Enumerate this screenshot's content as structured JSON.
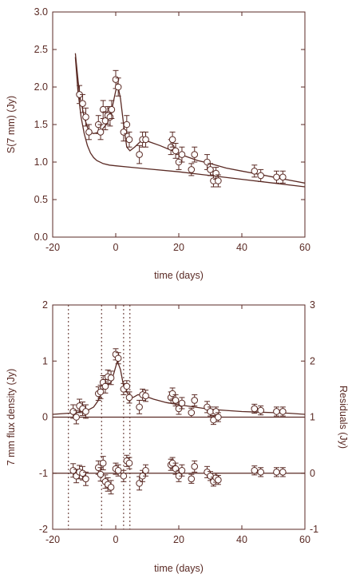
{
  "colors": {
    "ink": "#5a2a24",
    "background": "#ffffff"
  },
  "chart_data": [
    {
      "type": "scatter",
      "xlabel": "time (days)",
      "ylabel": "S(7 mm)  (Jy)",
      "xlim": [
        -20,
        60
      ],
      "ylim": [
        0.0,
        3.0
      ],
      "xticks": [
        "-20",
        "0",
        "20",
        "40",
        "60"
      ],
      "yticks": [
        "0.0",
        "0.5",
        "1.0",
        "1.5",
        "2.0",
        "2.5",
        "3.0"
      ],
      "series": [
        {
          "points": [
            {
              "x": -11.5,
              "y": 1.9,
              "err": 0.12
            },
            {
              "x": -10.5,
              "y": 1.78,
              "err": 0.12
            },
            {
              "x": -9.5,
              "y": 1.6,
              "err": 0.12
            },
            {
              "x": -8.5,
              "y": 1.4,
              "err": 0.1
            },
            {
              "x": -5.5,
              "y": 1.5,
              "err": 0.12
            },
            {
              "x": -4.8,
              "y": 1.4,
              "err": 0.1
            },
            {
              "x": -4.0,
              "y": 1.7,
              "err": 0.12
            },
            {
              "x": -3.3,
              "y": 1.55,
              "err": 0.12
            },
            {
              "x": -2.5,
              "y": 1.62,
              "err": 0.12
            },
            {
              "x": -1.8,
              "y": 1.6,
              "err": 0.12
            },
            {
              "x": -1.3,
              "y": 1.7,
              "err": 0.12
            },
            {
              "x": 0.0,
              "y": 2.1,
              "err": 0.12
            },
            {
              "x": 0.8,
              "y": 2.0,
              "err": 0.12
            },
            {
              "x": 2.5,
              "y": 1.4,
              "err": 0.12
            },
            {
              "x": 3.5,
              "y": 1.5,
              "err": 0.12
            },
            {
              "x": 4.3,
              "y": 1.3,
              "err": 0.1
            },
            {
              "x": 7.5,
              "y": 1.1,
              "err": 0.12
            },
            {
              "x": 8.5,
              "y": 1.3,
              "err": 0.1
            },
            {
              "x": 9.5,
              "y": 1.3,
              "err": 0.1
            },
            {
              "x": 17.5,
              "y": 1.2,
              "err": 0.1
            },
            {
              "x": 18.0,
              "y": 1.3,
              "err": 0.1
            },
            {
              "x": 19.0,
              "y": 1.15,
              "err": 0.1
            },
            {
              "x": 20.0,
              "y": 1.0,
              "err": 0.1
            },
            {
              "x": 21.0,
              "y": 1.1,
              "err": 0.1
            },
            {
              "x": 24.0,
              "y": 0.9,
              "err": 0.08
            },
            {
              "x": 25.0,
              "y": 1.1,
              "err": 0.1
            },
            {
              "x": 29.0,
              "y": 1.0,
              "err": 0.1
            },
            {
              "x": 30.0,
              "y": 0.9,
              "err": 0.08
            },
            {
              "x": 31.0,
              "y": 0.75,
              "err": 0.08
            },
            {
              "x": 31.8,
              "y": 0.85,
              "err": 0.08
            },
            {
              "x": 32.5,
              "y": 0.75,
              "err": 0.08
            },
            {
              "x": 44.0,
              "y": 0.88,
              "err": 0.08
            },
            {
              "x": 46.0,
              "y": 0.82,
              "err": 0.08
            },
            {
              "x": 51.0,
              "y": 0.8,
              "err": 0.08
            },
            {
              "x": 53.0,
              "y": 0.8,
              "err": 0.08
            }
          ]
        },
        {
          "type": "line",
          "x": [
            -12.8,
            -11.5,
            -10.0,
            -8.5,
            -7.0,
            -5.0,
            -3.0,
            -1.5,
            -0.5,
            0.5,
            1.5,
            2.5,
            3.5,
            4.5,
            6.0,
            8.0,
            10.0,
            14.0,
            18.0,
            22.0,
            26.0,
            30.0,
            35.0,
            40.0,
            45.0,
            50.0,
            55.0,
            60.0
          ],
          "y": [
            2.45,
            1.9,
            1.6,
            1.4,
            1.38,
            1.4,
            1.5,
            1.65,
            1.85,
            2.05,
            1.85,
            1.5,
            1.2,
            1.15,
            1.2,
            1.28,
            1.28,
            1.22,
            1.15,
            1.08,
            1.02,
            0.98,
            0.92,
            0.88,
            0.84,
            0.8,
            0.76,
            0.72
          ]
        },
        {
          "type": "line",
          "x": [
            -12.8,
            -12.0,
            -11.0,
            -10.0,
            -9.0,
            -8.0,
            -7.0,
            -6.0,
            -4.0,
            -2.0,
            0.0,
            5.0,
            10.0,
            20.0,
            30.0,
            40.0,
            50.0,
            60.0
          ],
          "y": [
            2.4,
            1.95,
            1.6,
            1.38,
            1.22,
            1.12,
            1.06,
            1.02,
            0.98,
            0.96,
            0.95,
            0.93,
            0.91,
            0.87,
            0.82,
            0.77,
            0.72,
            0.67
          ]
        }
      ]
    },
    {
      "type": "scatter",
      "xlabel": "time (days)",
      "ylabel": "7 mm flux density (Jy)",
      "y2label": "Residuals (Jy)",
      "xlim": [
        -20,
        60
      ],
      "ylim": [
        -2,
        2
      ],
      "y2lim": [
        -1,
        3
      ],
      "xticks": [
        "-20",
        "0",
        "20",
        "40",
        "60"
      ],
      "yticks": [
        "-2",
        "-1",
        "0",
        "1",
        "2"
      ],
      "y2ticks": [
        "-1",
        "0",
        "1",
        "2",
        "3"
      ],
      "vlines": [
        -15,
        -4.5,
        2.5,
        4.5
      ],
      "hlines": [
        0.0,
        -1.0
      ],
      "series": [
        {
          "points": [
            {
              "x": -13.5,
              "y": 0.1,
              "err": 0.12
            },
            {
              "x": -12.5,
              "y": 0.0,
              "err": 0.12
            },
            {
              "x": -11.5,
              "y": 0.2,
              "err": 0.12
            },
            {
              "x": -10.5,
              "y": 0.15,
              "err": 0.12
            },
            {
              "x": -9.5,
              "y": 0.1,
              "err": 0.12
            },
            {
              "x": -5.5,
              "y": 0.42,
              "err": 0.12
            },
            {
              "x": -4.8,
              "y": 0.45,
              "err": 0.12
            },
            {
              "x": -4.0,
              "y": 0.62,
              "err": 0.12
            },
            {
              "x": -3.3,
              "y": 0.55,
              "err": 0.12
            },
            {
              "x": -2.5,
              "y": 0.72,
              "err": 0.12
            },
            {
              "x": -1.5,
              "y": 0.7,
              "err": 0.12
            },
            {
              "x": 0.0,
              "y": 1.12,
              "err": 0.1
            },
            {
              "x": 0.8,
              "y": 1.05,
              "err": 0.1
            },
            {
              "x": 2.5,
              "y": 0.5,
              "err": 0.1
            },
            {
              "x": 3.5,
              "y": 0.55,
              "err": 0.1
            },
            {
              "x": 4.3,
              "y": 0.35,
              "err": 0.1
            },
            {
              "x": 7.5,
              "y": 0.18,
              "err": 0.12
            },
            {
              "x": 8.5,
              "y": 0.4,
              "err": 0.1
            },
            {
              "x": 9.5,
              "y": 0.38,
              "err": 0.1
            },
            {
              "x": 17.5,
              "y": 0.35,
              "err": 0.1
            },
            {
              "x": 18.0,
              "y": 0.42,
              "err": 0.1
            },
            {
              "x": 19.0,
              "y": 0.3,
              "err": 0.1
            },
            {
              "x": 20.0,
              "y": 0.15,
              "err": 0.1
            },
            {
              "x": 21.0,
              "y": 0.25,
              "err": 0.1
            },
            {
              "x": 24.0,
              "y": 0.08,
              "err": 0.08
            },
            {
              "x": 25.0,
              "y": 0.3,
              "err": 0.1
            },
            {
              "x": 29.0,
              "y": 0.18,
              "err": 0.1
            },
            {
              "x": 30.0,
              "y": 0.1,
              "err": 0.08
            },
            {
              "x": 31.0,
              "y": -0.05,
              "err": 0.08
            },
            {
              "x": 31.8,
              "y": 0.1,
              "err": 0.08
            },
            {
              "x": 32.5,
              "y": 0.0,
              "err": 0.08
            },
            {
              "x": 44.0,
              "y": 0.15,
              "err": 0.08
            },
            {
              "x": 46.0,
              "y": 0.12,
              "err": 0.08
            },
            {
              "x": 51.0,
              "y": 0.1,
              "err": 0.08
            },
            {
              "x": 53.0,
              "y": 0.1,
              "err": 0.08
            }
          ]
        },
        {
          "points": [
            {
              "x": -13.5,
              "y": -0.95,
              "err": 0.12
            },
            {
              "x": -12.5,
              "y": -1.05,
              "err": 0.12
            },
            {
              "x": -11.5,
              "y": -0.98,
              "err": 0.12
            },
            {
              "x": -10.5,
              "y": -1.0,
              "err": 0.12
            },
            {
              "x": -9.5,
              "y": -1.1,
              "err": 0.12
            },
            {
              "x": -5.5,
              "y": -0.9,
              "err": 0.12
            },
            {
              "x": -4.8,
              "y": -1.02,
              "err": 0.12
            },
            {
              "x": -4.0,
              "y": -0.82,
              "err": 0.12
            },
            {
              "x": -3.3,
              "y": -1.15,
              "err": 0.12
            },
            {
              "x": -2.5,
              "y": -1.2,
              "err": 0.12
            },
            {
              "x": -1.5,
              "y": -1.25,
              "err": 0.12
            },
            {
              "x": 0.0,
              "y": -0.92,
              "err": 0.1
            },
            {
              "x": 0.8,
              "y": -0.95,
              "err": 0.1
            },
            {
              "x": 2.5,
              "y": -1.05,
              "err": 0.1
            },
            {
              "x": 3.5,
              "y": -0.78,
              "err": 0.1
            },
            {
              "x": 4.3,
              "y": -0.82,
              "err": 0.1
            },
            {
              "x": 7.5,
              "y": -1.18,
              "err": 0.12
            },
            {
              "x": 8.5,
              "y": -1.05,
              "err": 0.1
            },
            {
              "x": 9.5,
              "y": -0.95,
              "err": 0.1
            },
            {
              "x": 17.5,
              "y": -0.85,
              "err": 0.1
            },
            {
              "x": 18.0,
              "y": -0.82,
              "err": 0.1
            },
            {
              "x": 19.0,
              "y": -0.92,
              "err": 0.1
            },
            {
              "x": 20.0,
              "y": -1.05,
              "err": 0.1
            },
            {
              "x": 21.0,
              "y": -0.95,
              "err": 0.1
            },
            {
              "x": 24.0,
              "y": -1.1,
              "err": 0.08
            },
            {
              "x": 25.0,
              "y": -0.88,
              "err": 0.1
            },
            {
              "x": 29.0,
              "y": -0.98,
              "err": 0.1
            },
            {
              "x": 30.0,
              "y": -1.05,
              "err": 0.08
            },
            {
              "x": 31.0,
              "y": -1.15,
              "err": 0.08
            },
            {
              "x": 31.8,
              "y": -1.08,
              "err": 0.08
            },
            {
              "x": 32.5,
              "y": -1.12,
              "err": 0.08
            },
            {
              "x": 44.0,
              "y": -0.95,
              "err": 0.08
            },
            {
              "x": 46.0,
              "y": -0.98,
              "err": 0.08
            },
            {
              "x": 51.0,
              "y": -0.98,
              "err": 0.08
            },
            {
              "x": 53.0,
              "y": -0.98,
              "err": 0.08
            }
          ]
        },
        {
          "type": "line",
          "x": [
            -20,
            -15,
            -13,
            -11,
            -9,
            -7,
            -5.5,
            -4.5,
            -3.5,
            -2.5,
            -1.5,
            -0.5,
            0.5,
            1.5,
            2.5,
            3.5,
            4.5,
            5.5,
            7,
            9,
            12,
            16,
            20,
            25,
            30,
            35,
            40,
            45,
            50,
            55,
            60
          ],
          "y": [
            0.05,
            0.07,
            0.08,
            0.1,
            0.12,
            0.18,
            0.3,
            0.45,
            0.55,
            0.58,
            0.62,
            0.8,
            1.0,
            0.85,
            0.55,
            0.45,
            0.35,
            0.35,
            0.4,
            0.38,
            0.32,
            0.26,
            0.22,
            0.18,
            0.14,
            0.12,
            0.1,
            0.09,
            0.08,
            0.07,
            0.05
          ]
        }
      ]
    }
  ]
}
